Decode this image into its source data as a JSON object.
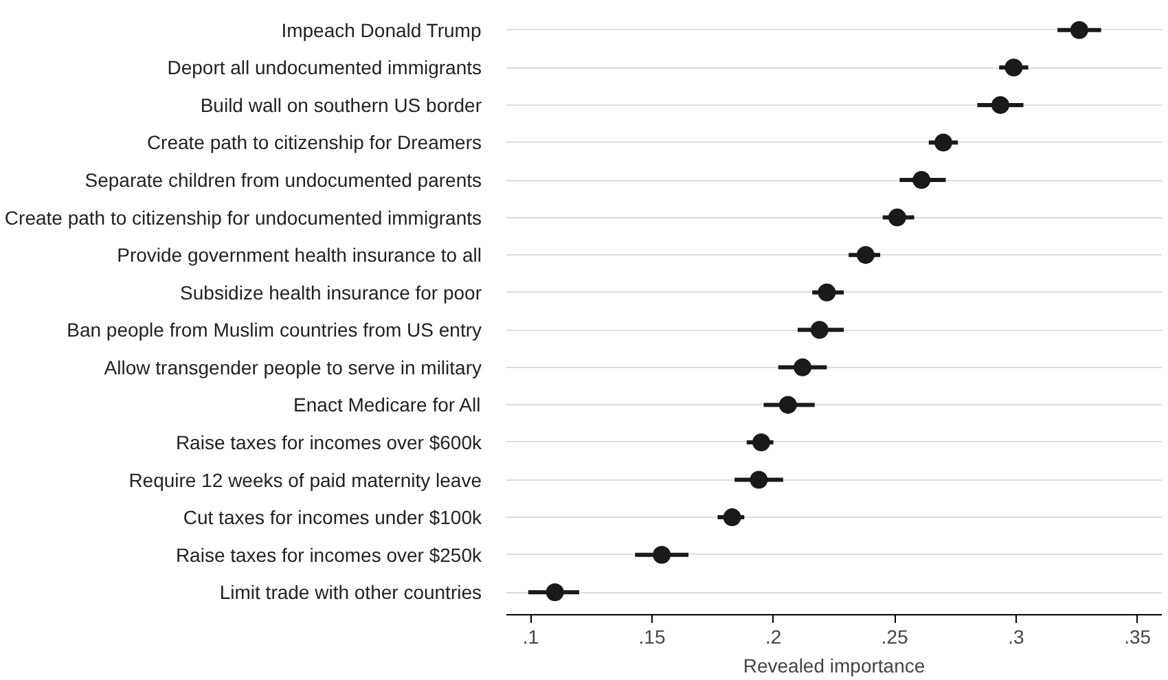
{
  "chart_data": {
    "type": "scatter",
    "orientation": "horizontal",
    "xlabel": "Revealed importance",
    "categories": [
      "Impeach Donald Trump",
      "Deport all undocumented immigrants",
      "Build wall on southern US border",
      "Create path to citizenship for Dreamers",
      "Separate children from undocumented parents",
      "Create path to citizenship for undocumented immigrants",
      "Provide government health insurance to all",
      "Subsidize health insurance for poor",
      "Ban people from Muslim countries from US entry",
      "Allow transgender people to serve in military",
      "Enact Medicare for All",
      "Raise taxes for incomes over $600k",
      "Require 12 weeks of paid maternity leave",
      "Cut taxes for incomes under $100k",
      "Raise taxes for incomes over $250k",
      "Limit trade with other countries"
    ],
    "values": [
      0.326,
      0.299,
      0.2935,
      0.27,
      0.261,
      0.251,
      0.238,
      0.222,
      0.219,
      0.212,
      0.206,
      0.195,
      0.194,
      0.183,
      0.154,
      0.11
    ],
    "errors": [
      [
        0.317,
        0.335
      ],
      [
        0.293,
        0.305
      ],
      [
        0.284,
        0.303
      ],
      [
        0.264,
        0.276
      ],
      [
        0.252,
        0.271
      ],
      [
        0.245,
        0.258
      ],
      [
        0.231,
        0.244
      ],
      [
        0.216,
        0.229
      ],
      [
        0.21,
        0.229
      ],
      [
        0.202,
        0.222
      ],
      [
        0.196,
        0.217
      ],
      [
        0.189,
        0.2
      ],
      [
        0.184,
        0.204
      ],
      [
        0.177,
        0.188
      ],
      [
        0.143,
        0.165
      ],
      [
        0.099,
        0.12
      ]
    ],
    "color": "#1a1a1a",
    "marker": "circle",
    "grid": "y",
    "xlim": [
      0.09,
      0.36
    ],
    "xticks": [
      {
        "value": 0.1,
        "label": ".1"
      },
      {
        "value": 0.15,
        "label": ".15"
      },
      {
        "value": 0.2,
        "label": ".2"
      },
      {
        "value": 0.25,
        "label": ".25"
      },
      {
        "value": 0.3,
        "label": ".3"
      },
      {
        "value": 0.35,
        "label": ".35"
      }
    ]
  }
}
